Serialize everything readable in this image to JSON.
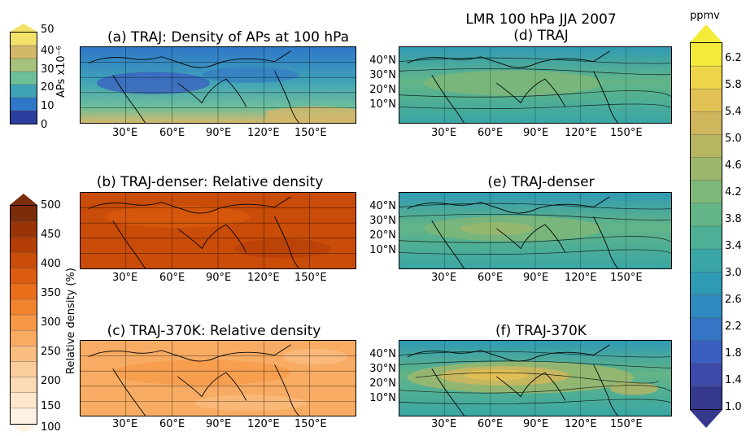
{
  "figure": {
    "super_title": "LMR 100 hPa JJA 2007",
    "panels": [
      {
        "id": "a",
        "title": "(a) TRAJ: Density of APs at 100 hPa",
        "palette": "aps"
      },
      {
        "id": "b",
        "title": "(b) TRAJ-denser: Relative density",
        "palette": "rel_dark"
      },
      {
        "id": "c",
        "title": "(c) TRAJ-370K: Relative density",
        "palette": "rel_light"
      },
      {
        "id": "d",
        "title": "(d) TRAJ",
        "palette": "lmr"
      },
      {
        "id": "e",
        "title": "(e) TRAJ-denser",
        "palette": "lmr"
      },
      {
        "id": "f",
        "title": "(f) TRAJ-370K",
        "palette": "lmr_strong"
      }
    ],
    "lon_ticks": [
      "30°E",
      "60°E",
      "90°E",
      "120°E",
      "150°E"
    ],
    "lat_ticks": [
      "40°N",
      "30°N",
      "20°N",
      "10°N"
    ]
  },
  "colorbars": {
    "aps": {
      "label": "APs x10⁻⁶",
      "ticks": [
        "50",
        "40",
        "30",
        "20",
        "10",
        "0"
      ],
      "colors": [
        "#f3e26a",
        "#d4b86a",
        "#a7c27a",
        "#6fbe9a",
        "#3fa3b8",
        "#2f77c8",
        "#2d3f9e"
      ]
    },
    "relative_density": {
      "label": "Relative density (%)",
      "ticks": [
        "500",
        "450",
        "400",
        "350",
        "300",
        "250",
        "200",
        "150",
        "100"
      ],
      "colors": [
        "#7a2c0b",
        "#993407",
        "#b23e06",
        "#c94c08",
        "#dc5b0e",
        "#ea6e1a",
        "#f2832e",
        "#f69847",
        "#f8ac63",
        "#fabd80",
        "#fccd9c",
        "#fddab6",
        "#fee6cd",
        "#fff1e4"
      ]
    },
    "lmr": {
      "unit": "ppmv",
      "ticks": [
        "6.2",
        "5.8",
        "5.4",
        "5.0",
        "4.6",
        "4.2",
        "3.8",
        "3.4",
        "3.0",
        "2.6",
        "2.2",
        "1.8",
        "1.4",
        "1.0"
      ],
      "colors": [
        "#f5ec3a",
        "#ecd548",
        "#e2c155",
        "#cfb65c",
        "#b8b562",
        "#9cb76c",
        "#7fb778",
        "#63b587",
        "#4caf96",
        "#39a6a5",
        "#2f9ab4",
        "#2f8bbf",
        "#3476c5",
        "#3a5fc0",
        "#3d4aa8",
        "#35398e"
      ]
    }
  }
}
